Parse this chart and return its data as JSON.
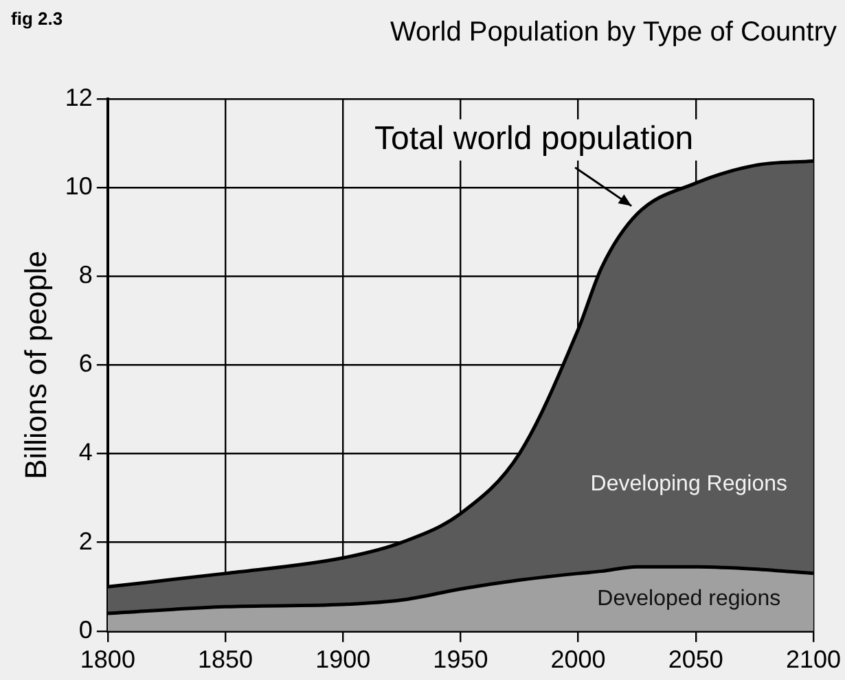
{
  "chart_data": {
    "type": "area",
    "stacked": true,
    "title": "World Population by Type of Country",
    "ylabel": "Billions of people",
    "annotations": [
      "fig 2.3",
      {
        "text": "Total world population",
        "x": 2025,
        "y": 9.4
      }
    ],
    "x": [
      1800,
      1850,
      1900,
      1925,
      1950,
      1975,
      2000,
      2010,
      2025,
      2050,
      2075,
      2100
    ],
    "series": [
      {
        "name": "Developed regions",
        "color": "#a0a0a0",
        "values": [
          0.4,
          0.55,
          0.6,
          0.7,
          0.95,
          1.15,
          1.3,
          1.35,
          1.45,
          1.45,
          1.4,
          1.3
        ]
      },
      {
        "name": "Developing Regions",
        "color": "#5a5a5a",
        "values": [
          0.6,
          0.75,
          1.05,
          1.3,
          1.7,
          2.85,
          5.5,
          6.85,
          7.95,
          8.65,
          9.1,
          9.3
        ]
      }
    ],
    "xlim": [
      1800,
      2100
    ],
    "xticks": [
      1800,
      1850,
      1900,
      1950,
      2000,
      2050,
      2100
    ],
    "ylim": [
      0,
      12
    ],
    "yticks": [
      0,
      2,
      4,
      6,
      8,
      10,
      12
    ],
    "grid": true,
    "legend": false
  }
}
